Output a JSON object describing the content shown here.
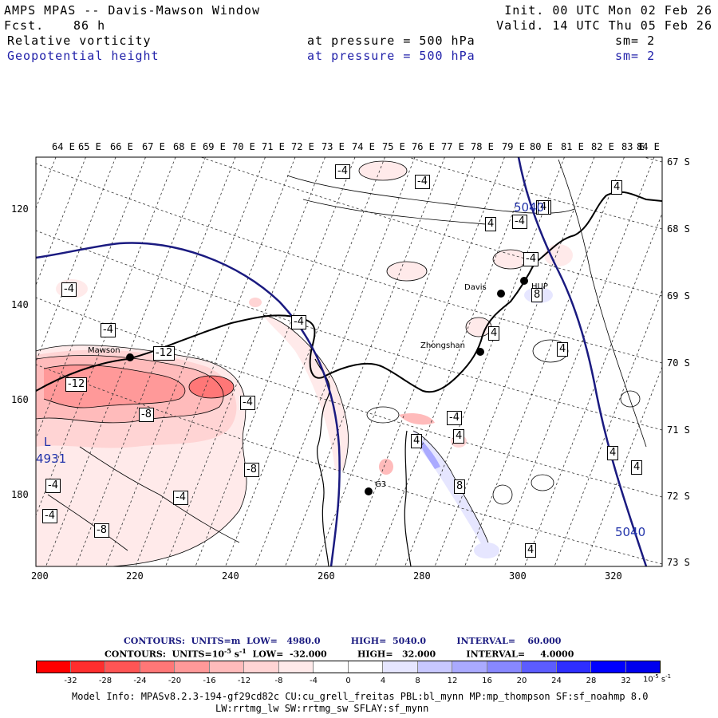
{
  "header": {
    "title": "AMPS MPAS -- Davis-Mawson Window",
    "forecast_label": "Fcst.",
    "forecast_value": "86 h",
    "init": "Init. 00 UTC Mon 02 Feb 26",
    "valid": "Valid. 14 UTC Thu 05 Feb 26",
    "field1_name": "Relative vorticity",
    "field1_pressure": "at pressure =  500 hPa",
    "field1_sm": "sm= 2",
    "field2_name": "Geopotential height",
    "field2_pressure": "at pressure =  500 hPa",
    "field2_sm": "sm= 2"
  },
  "map": {
    "longitude_labels": [
      "64 E",
      "65 E",
      "66 E",
      "67 E",
      "68 E",
      "69 E",
      "70 E",
      "71 E",
      "72 E",
      "73 E",
      "74 E",
      "75 E",
      "76 E",
      "77 E",
      "78 E",
      "79 E",
      "80 E",
      "81 E",
      "82 E",
      "83 E",
      "84 E"
    ],
    "latitude_labels": [
      "67 S",
      "68 S",
      "69 S",
      "70 S",
      "71 S",
      "72 S",
      "73 S"
    ],
    "x_axis_ticks": [
      "200",
      "220",
      "240",
      "260",
      "280",
      "300",
      "320"
    ],
    "y_axis_ticks": [
      "120",
      "140",
      "160",
      "180"
    ],
    "stations": [
      {
        "name": "Davis"
      },
      {
        "name": "Mawson"
      },
      {
        "name": "Zhongshan"
      },
      {
        "name": "G3"
      },
      {
        "name": "HUP"
      }
    ],
    "contour_labels": [
      "-4",
      "-4",
      "-4",
      "-4",
      "-4",
      "-4",
      "-12",
      "-12",
      "-8",
      "-4",
      "-8",
      "-4",
      "-4",
      "-4",
      "-8",
      "4",
      "4",
      "-4",
      "-4",
      "4",
      "8",
      "4",
      "4",
      "4",
      "4",
      "8",
      "4",
      "4",
      "4",
      "-4"
    ],
    "height_labels": [
      "5040",
      "5040",
      "L",
      "4931"
    ]
  },
  "legend": {
    "line1": "CONTOURS:  UNITS=m  LOW=   4980.0          HIGH=  5040.0          INTERVAL=    60.000",
    "line2": "CONTOURS:  UNITS=10",
    "line2_sup": "-5",
    "line2_unit": " s",
    "line2_sup2": "-1",
    "line2_rest": "  LOW=  -32.000          HIGH=   32.000          INTERVAL=     4.0000",
    "colorbar_labels": [
      "-32",
      "-28",
      "-24",
      "-20",
      "-16",
      "-12",
      "-8",
      "-4",
      "0",
      "4",
      "8",
      "12",
      "16",
      "20",
      "24",
      "28",
      "32"
    ],
    "colorbar_unit": "10",
    "colorbar_unit_sup": "-5",
    "colorbar_unit_s": " s",
    "colorbar_unit_sup2": "-1",
    "colorbar_colors": [
      "#ff0000",
      "#ff2e2e",
      "#ff5555",
      "#ff7777",
      "#ff9999",
      "#ffbbbb",
      "#ffd4d4",
      "#ffeaea",
      "#ffffff",
      "#ffffff",
      "#e6e6ff",
      "#c8c8ff",
      "#aaaaff",
      "#8888ff",
      "#5c5cff",
      "#2e2eff",
      "#0000ff"
    ]
  },
  "info": {
    "line1": "Model Info: MPASv8.2.3-194-gf29cd82c CU:cu_grell_freitas PBL:bl_mynn MP:mp_thompson SF:sf_noahmp 8.0",
    "line2": "LW:rrtmg_lw SW:rrtmg_sw SFLAY:sf_mynn"
  }
}
